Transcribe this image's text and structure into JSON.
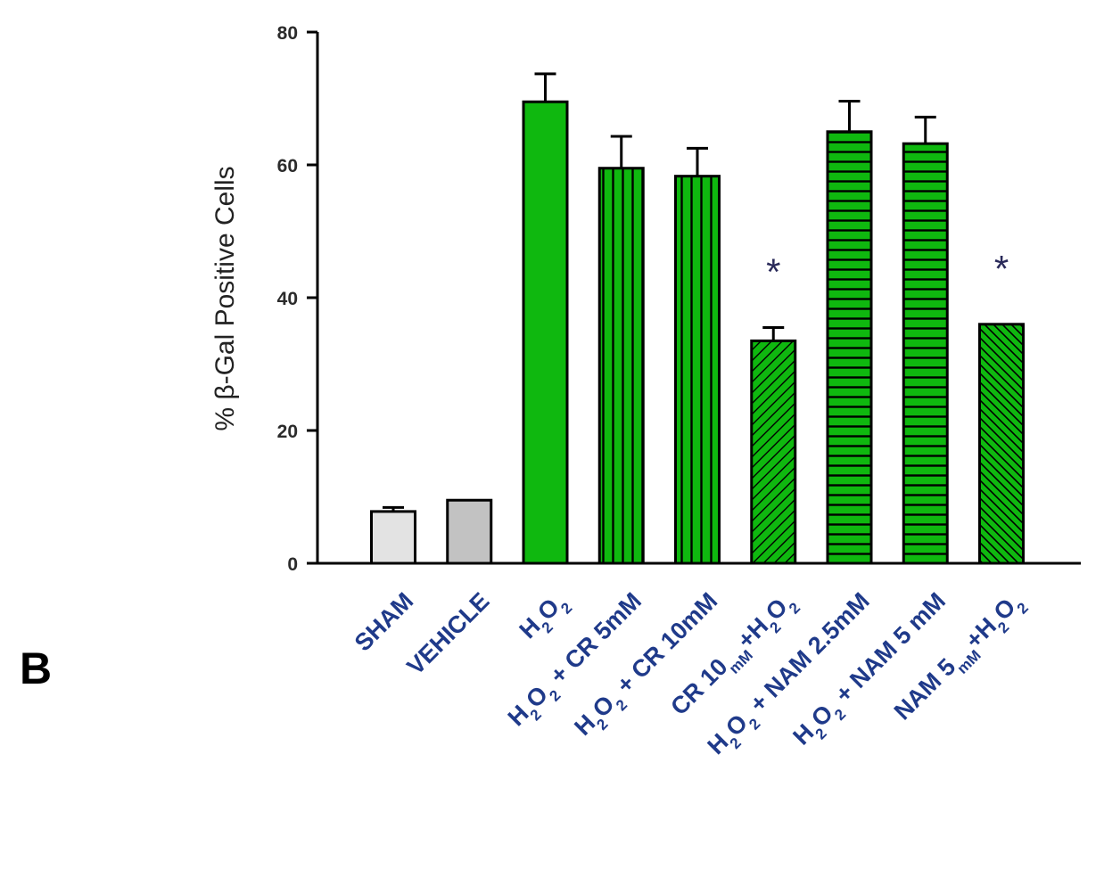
{
  "panel_label": "B",
  "chart_data": {
    "type": "bar",
    "ylabel": "% β-Gal Positive Cells",
    "xlabel": "",
    "ylim": [
      0,
      80
    ],
    "yticks": [
      0,
      20,
      40,
      60,
      80
    ],
    "grid": false,
    "categories": [
      {
        "parts": [
          {
            "t": "SHAM",
            "sub": false
          }
        ]
      },
      {
        "parts": [
          {
            "t": "VEHICLE",
            "sub": false
          }
        ]
      },
      {
        "parts": [
          {
            "t": "H",
            "sub": false
          },
          {
            "t": "2",
            "sub": true
          },
          {
            "t": "O",
            "sub": false
          },
          {
            "t": "2",
            "sub": true
          }
        ]
      },
      {
        "parts": [
          {
            "t": "H",
            "sub": false
          },
          {
            "t": "2",
            "sub": true
          },
          {
            "t": "O",
            "sub": false
          },
          {
            "t": "2",
            "sub": true
          },
          {
            "t": " + CR 5mM",
            "sub": false
          }
        ]
      },
      {
        "parts": [
          {
            "t": "H",
            "sub": false
          },
          {
            "t": "2",
            "sub": true
          },
          {
            "t": "O",
            "sub": false
          },
          {
            "t": "2",
            "sub": true
          },
          {
            "t": " + CR 10mM",
            "sub": false
          }
        ]
      },
      {
        "parts": [
          {
            "t": "CR 10",
            "sub": false
          },
          {
            "t": "mM",
            "sub": true
          },
          {
            "t": "+H",
            "sub": false
          },
          {
            "t": "2",
            "sub": true
          },
          {
            "t": "O",
            "sub": false
          },
          {
            "t": "2",
            "sub": true
          }
        ]
      },
      {
        "parts": [
          {
            "t": "H",
            "sub": false
          },
          {
            "t": "2",
            "sub": true
          },
          {
            "t": "O",
            "sub": false
          },
          {
            "t": "2",
            "sub": true
          },
          {
            "t": " + NAM 2.5mM",
            "sub": false
          }
        ]
      },
      {
        "parts": [
          {
            "t": "H",
            "sub": false
          },
          {
            "t": "2",
            "sub": true
          },
          {
            "t": "O",
            "sub": false
          },
          {
            "t": "2",
            "sub": true
          },
          {
            "t": " + NAM 5 mM",
            "sub": false
          }
        ]
      },
      {
        "parts": [
          {
            "t": "NAM 5",
            "sub": false
          },
          {
            "t": "mM",
            "sub": true
          },
          {
            "t": "+H",
            "sub": false
          },
          {
            "t": "2",
            "sub": true
          },
          {
            "t": "O",
            "sub": false
          },
          {
            "t": "2",
            "sub": true
          }
        ]
      }
    ],
    "values": [
      7.8,
      9.5,
      69.5,
      59.5,
      58.3,
      33.5,
      65.0,
      63.2,
      36.0
    ],
    "errors": [
      0.6,
      0,
      4.2,
      4.8,
      4.2,
      2.0,
      4.6,
      4.0,
      0
    ],
    "significance": [
      "",
      "",
      "",
      "",
      "",
      "*",
      "",
      "",
      "*"
    ],
    "fills": [
      "#e3e3e3",
      "#c2c2c2",
      "#0fb80f",
      "#0fb80f",
      "#0fb80f",
      "#0fb80f",
      "#0fb80f",
      "#0fb80f",
      "#0fb80f"
    ],
    "patterns": [
      "none",
      "none",
      "none",
      "vertical",
      "vertical",
      "diagonal-up",
      "horizontal",
      "horizontal",
      "diagonal-down"
    ]
  }
}
